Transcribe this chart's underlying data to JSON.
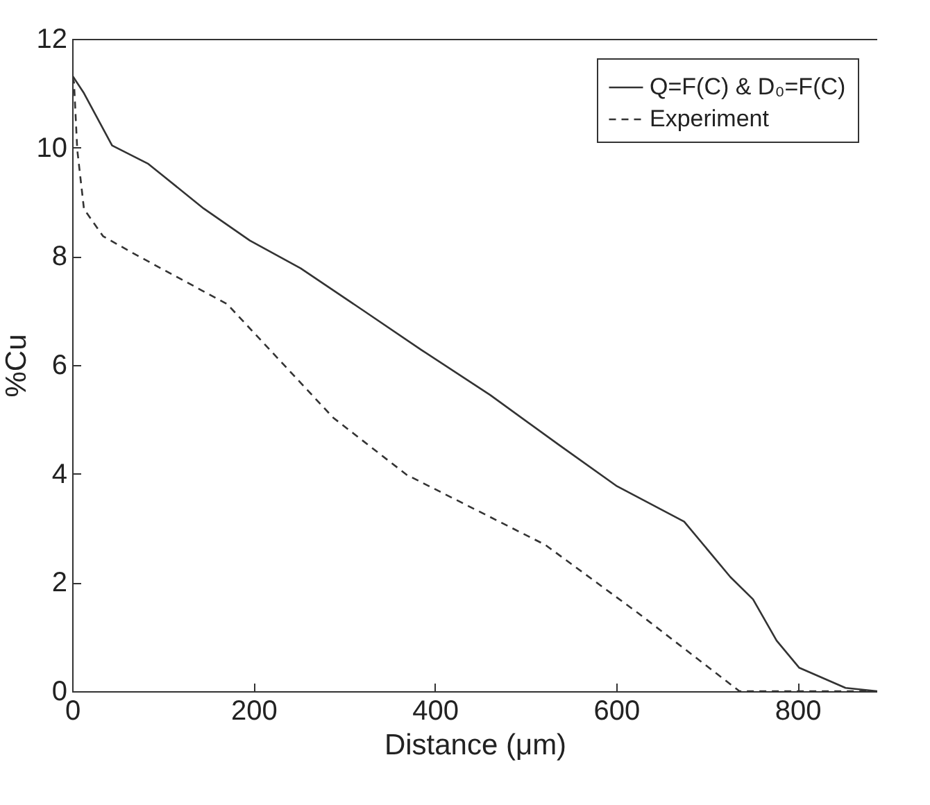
{
  "chart_data": {
    "type": "line",
    "xlabel": "Distance (μm)",
    "ylabel": "%Cu",
    "xlim": [
      0,
      888
    ],
    "xticks": [
      0,
      200,
      400,
      600,
      800
    ],
    "ylim": [
      0,
      12
    ],
    "yticks": [
      0,
      2,
      4,
      6,
      8,
      10,
      12
    ],
    "grid": false,
    "legend": "top right",
    "series": [
      {
        "name": "Q=F(C) & D₀=F(C)",
        "color": "#333333",
        "line_style": "solid",
        "x": [
          0,
          13,
          44,
          84,
          145,
          196,
          252,
          324,
          385,
          461,
          537,
          601,
          675,
          726,
          751,
          777,
          802,
          853,
          888
        ],
        "values": [
          11.33,
          11.0,
          10.04,
          9.7,
          8.88,
          8.29,
          7.78,
          6.97,
          6.28,
          5.45,
          4.53,
          3.77,
          3.12,
          2.1,
          1.69,
          0.93,
          0.43,
          0.06,
          0
        ]
      },
      {
        "name": "Experiment",
        "color": "#333333",
        "line_style": "dashed",
        "x": [
          0,
          2,
          5.6,
          13,
          34,
          69,
          171,
          288,
          369,
          522,
          624,
          736,
          880
        ],
        "values": [
          11.3,
          11.2,
          9.96,
          8.87,
          8.37,
          8.04,
          7.12,
          5.03,
          3.98,
          2.69,
          1.44,
          0,
          0
        ]
      }
    ]
  }
}
